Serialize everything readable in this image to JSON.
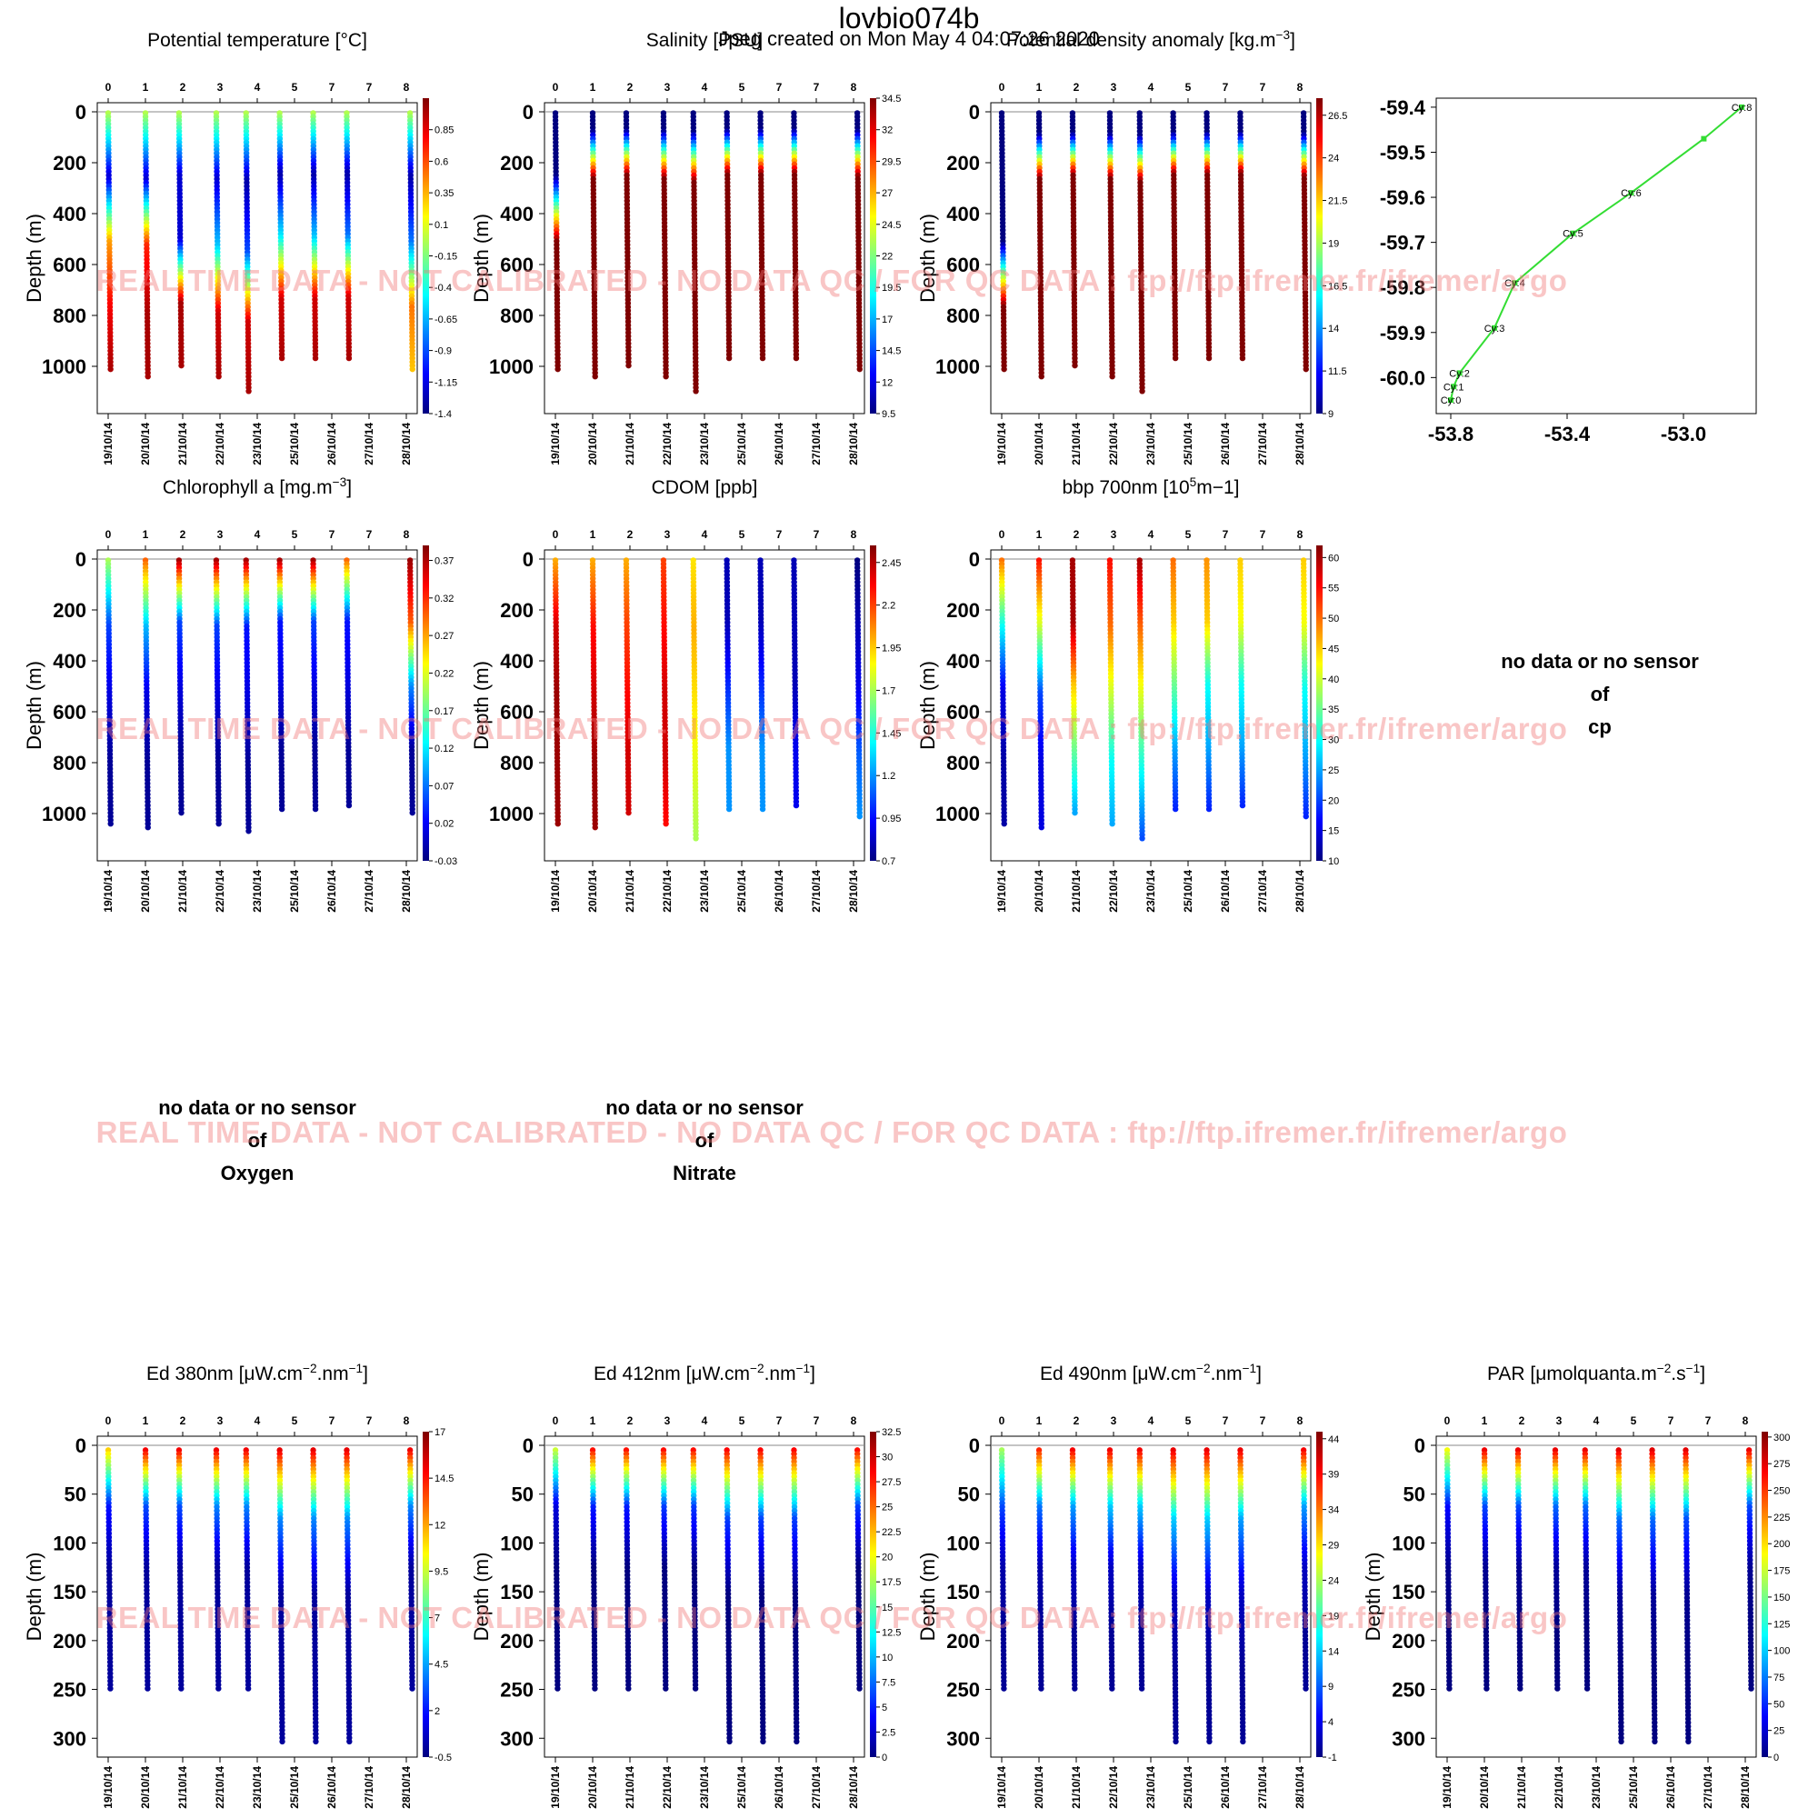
{
  "header": {
    "title": "lovbio074b",
    "subtitle": "Jpeg created on  Mon May  4 04:07:26 2020"
  },
  "watermark": "REAL TIME DATA - NOT CALIBRATED - NO DATA QC   /  FOR QC DATA : ftp://ftp.ifremer.fr/ifremer/argo",
  "common": {
    "ylabel": "Depth (m)",
    "dates": [
      "19/10/14",
      "20/10/14",
      "21/10/14",
      "22/10/14",
      "23/10/14",
      "25/10/14",
      "26/10/14",
      "27/10/14",
      "28/10/14"
    ],
    "date_x": [
      0,
      1,
      2,
      3,
      4,
      5,
      6,
      7,
      8
    ],
    "cycle_ticks": [
      "0",
      "1",
      "2",
      "3",
      "4",
      "5",
      "7",
      "7",
      "8"
    ],
    "cycle_x": [
      0,
      1,
      2,
      3,
      4,
      5,
      6,
      7,
      8
    ],
    "profile_x": [
      0,
      1,
      1.9,
      2.9,
      3.7,
      4.6,
      5.5,
      6.4,
      8.1
    ],
    "colormap": [
      "#00007f",
      "#0000ff",
      "#007fff",
      "#00ffff",
      "#7fff7f",
      "#ffff00",
      "#ff7f00",
      "#ff0000",
      "#7f0000"
    ]
  },
  "no_data_panels": [
    {
      "line1": "no data or no sensor",
      "line2": "of",
      "param": "cp"
    },
    {
      "line1": "no data or no sensor",
      "line2": "of",
      "param": "Oxygen"
    },
    {
      "line1": "no data or no sensor",
      "line2": "of",
      "param": "Nitrate"
    }
  ],
  "chart_data": [
    {
      "type": "scatter",
      "title": "Potential temperature [°C]",
      "ylabel": "Depth (m)",
      "ylim": [
        0,
        1150
      ],
      "yticks": [
        0,
        200,
        400,
        600,
        800,
        1000
      ],
      "colorbar": {
        "range": [
          -1.4,
          1.1
        ],
        "ticks": [
          "-1.4",
          "-1.15",
          "-0.9",
          "-0.65",
          "-0.4",
          "-0.15",
          "0.1",
          "0.35",
          "0.6",
          "0.85"
        ]
      },
      "profile_max_depth": [
        1020,
        1050,
        1000,
        1050,
        1100,
        980,
        980,
        970,
        1020
      ],
      "profiles": [
        [
          0,
          -1.2,
          0.4,
          0.8,
          1.0
        ],
        [
          0,
          -1.2,
          0.7,
          1.0,
          1.0
        ],
        [
          0,
          -1.2,
          -1.2,
          1.0,
          1.0
        ],
        [
          0,
          -1.2,
          -0.6,
          0.9,
          1.0
        ],
        [
          0,
          -1.3,
          -0.9,
          0.9,
          1.0
        ],
        [
          0,
          -1.3,
          -0.5,
          0.9,
          1.0
        ],
        [
          0,
          -1.3,
          -0.6,
          0.9,
          1.0
        ],
        [
          0,
          -1.3,
          -0.8,
          0.9,
          1.0
        ],
        [
          0,
          -1.3,
          -0.8,
          0.5,
          0.3
        ]
      ]
    },
    {
      "type": "scatter",
      "title": "Salinity [PSU]",
      "ylabel": "Depth (m)",
      "ylim": [
        0,
        1150
      ],
      "yticks": [
        0,
        200,
        400,
        600,
        800,
        1000
      ],
      "colorbar": {
        "range": [
          9.5,
          34.5
        ],
        "ticks": [
          "9.5",
          "12",
          "14.5",
          "17",
          "19.5",
          "22",
          "24.5",
          "27",
          "29.5",
          "32",
          "34.5"
        ]
      },
      "profile_max_depth": [
        1020,
        1050,
        1000,
        1050,
        1100,
        980,
        980,
        970,
        1020
      ],
      "profiles": [
        [
          0,
          10,
          34.5,
          34.5,
          34.5
        ],
        [
          0,
          34.5,
          34.5,
          34.5,
          34.5
        ],
        [
          0,
          34.5,
          34.5,
          34.5,
          34.5
        ],
        [
          0,
          34.5,
          34.5,
          34.5,
          34.5
        ],
        [
          0,
          34.5,
          34.5,
          34.5,
          34.5
        ],
        [
          0,
          34.5,
          34.5,
          34.5,
          34.5
        ],
        [
          0,
          34.5,
          34.5,
          34.5,
          34.5
        ],
        [
          0,
          34.5,
          34.5,
          34.5,
          34.5
        ],
        [
          0,
          34.5,
          34.5,
          34.5,
          34.5
        ]
      ]
    },
    {
      "type": "scatter",
      "title": "Potential density anomaly [kg.m−3]",
      "ylabel": "Depth (m)",
      "ylim": [
        0,
        1150
      ],
      "yticks": [
        0,
        200,
        400,
        600,
        800,
        1000
      ],
      "colorbar": {
        "range": [
          9,
          27.5
        ],
        "ticks": [
          "9",
          "11.5",
          "14",
          "16.5",
          "19",
          "21.5",
          "24",
          "26.5"
        ]
      },
      "profile_max_depth": [
        1020,
        1050,
        1000,
        1050,
        1100,
        980,
        980,
        970,
        1020
      ],
      "profiles": [
        [
          0,
          9,
          9,
          27.5,
          27.5
        ],
        [
          0,
          27.5,
          27.5,
          27.5,
          27.5
        ],
        [
          0,
          27.5,
          27.5,
          27.5,
          27.5
        ],
        [
          0,
          27.5,
          27.5,
          27.5,
          27.5
        ],
        [
          0,
          27.5,
          27.5,
          27.5,
          27.5
        ],
        [
          0,
          27.5,
          27.5,
          27.5,
          27.5
        ],
        [
          0,
          27.5,
          27.5,
          27.5,
          27.5
        ],
        [
          0,
          27.5,
          27.5,
          27.5,
          27.5
        ],
        [
          0,
          27.5,
          27.5,
          27.5,
          27.5
        ]
      ]
    },
    {
      "type": "line",
      "title": "",
      "xlim": [
        -53.85,
        -52.75
      ],
      "ylim": [
        -60.08,
        -59.38
      ],
      "xticks": [
        "-53.8",
        "-53.4",
        "-53.0"
      ],
      "xtick_values": [
        -53.8,
        -53.4,
        -53.0
      ],
      "yticks": [
        "-59.4",
        "-59.5",
        "-59.6",
        "-59.7",
        "-59.8",
        "-59.9",
        "-60.0"
      ],
      "ytick_values": [
        -59.4,
        -59.5,
        -59.6,
        -59.7,
        -59.8,
        -59.9,
        -60.0
      ],
      "color": "#33dd33",
      "x": [
        -53.8,
        -53.79,
        -53.77,
        -53.65,
        -53.58,
        -53.38,
        -53.18,
        -52.93,
        -52.8
      ],
      "y": [
        -60.05,
        -60.02,
        -59.99,
        -59.89,
        -59.79,
        -59.68,
        -59.59,
        -59.47,
        -59.4
      ],
      "labels": [
        "Cy:0",
        "Cy:1",
        "Cy:2",
        "Cy:3",
        "Cy:4",
        "Cy:5",
        "Cy:6",
        "",
        "Cy:8"
      ]
    },
    {
      "type": "scatter",
      "title": "Chlorophyll a [mg.m−3]",
      "ylabel": "Depth (m)",
      "ylim": [
        0,
        1150
      ],
      "yticks": [
        0,
        200,
        400,
        600,
        800,
        1000
      ],
      "colorbar": {
        "range": [
          -0.03,
          0.39
        ],
        "ticks": [
          "-0.03",
          "0.02",
          "0.07",
          "0.12",
          "0.17",
          "0.22",
          "0.27",
          "0.32",
          "0.37"
        ]
      },
      "profile_max_depth": [
        1050,
        1060,
        1000,
        1050,
        1070,
        990,
        990,
        980,
        1000
      ],
      "profiles": [
        [
          0.2,
          0.05,
          0.01,
          -0.02,
          -0.02
        ],
        [
          0.3,
          0.1,
          0.01,
          -0.02,
          -0.02
        ],
        [
          0.38,
          0.05,
          0.01,
          -0.02,
          -0.02
        ],
        [
          0.38,
          0.05,
          0.01,
          -0.02,
          -0.02
        ],
        [
          0.38,
          0.03,
          0.01,
          -0.02,
          -0.02
        ],
        [
          0.38,
          0.03,
          0.01,
          -0.02,
          -0.02
        ],
        [
          0.38,
          0.05,
          0.01,
          -0.02,
          -0.02
        ],
        [
          0.3,
          0.03,
          0.01,
          -0.02,
          -0.02
        ],
        [
          0.38,
          0.3,
          0.08,
          -0.02,
          -0.02
        ]
      ]
    },
    {
      "type": "scatter",
      "title": "CDOM  [ppb]",
      "ylabel": "Depth (m)",
      "ylim": [
        0,
        1150
      ],
      "yticks": [
        0,
        200,
        400,
        600,
        800,
        1000
      ],
      "colorbar": {
        "range": [
          0.7,
          2.55
        ],
        "ticks": [
          "0.7",
          "0.95",
          "1.2",
          "1.45",
          "1.7",
          "1.95",
          "2.2",
          "2.45"
        ]
      },
      "profile_max_depth": [
        1050,
        1060,
        1000,
        1050,
        1110,
        990,
        990,
        980,
        1020
      ],
      "profiles": [
        [
          2.0,
          2.4,
          2.5,
          2.5,
          2.5
        ],
        [
          2.0,
          2.3,
          2.4,
          2.5,
          2.5
        ],
        [
          2.0,
          2.2,
          2.3,
          2.4,
          2.4
        ],
        [
          2.2,
          2.3,
          2.4,
          2.4,
          2.3
        ],
        [
          1.9,
          2.0,
          1.9,
          1.8,
          1.7
        ],
        [
          0.8,
          0.8,
          1.0,
          1.2,
          1.2
        ],
        [
          0.8,
          0.8,
          1.0,
          1.2,
          1.2
        ],
        [
          0.8,
          0.8,
          0.8,
          0.9,
          0.9
        ],
        [
          0.7,
          0.8,
          0.9,
          1.1,
          1.2
        ]
      ]
    },
    {
      "type": "scatter",
      "title": "bbp 700nm [105m−1]",
      "ylabel": "Depth (m)",
      "ylim": [
        0,
        1150
      ],
      "yticks": [
        0,
        200,
        400,
        600,
        800,
        1000
      ],
      "colorbar": {
        "range": [
          10,
          62
        ],
        "ticks": [
          "10",
          "15",
          "20",
          "25",
          "30",
          "35",
          "40",
          "45",
          "50",
          "55",
          "60"
        ]
      },
      "profile_max_depth": [
        1050,
        1060,
        1000,
        1050,
        1110,
        990,
        990,
        980,
        1020
      ],
      "profiles": [
        [
          50,
          30,
          15,
          12,
          12
        ],
        [
          55,
          40,
          20,
          15,
          15
        ],
        [
          60,
          60,
          45,
          35,
          25
        ],
        [
          55,
          50,
          40,
          30,
          25
        ],
        [
          60,
          50,
          40,
          30,
          20
        ],
        [
          50,
          45,
          35,
          25,
          18
        ],
        [
          48,
          45,
          30,
          25,
          18
        ],
        [
          45,
          42,
          30,
          25,
          18
        ],
        [
          45,
          42,
          30,
          25,
          18
        ]
      ]
    },
    {
      "type": "scatter",
      "title": "Ed 380nm [μW.cm−2.nm−1]",
      "ylabel": "Depth (m)",
      "ylim": [
        0,
        310
      ],
      "yticks": [
        0,
        50,
        100,
        150,
        200,
        250,
        300
      ],
      "colorbar": {
        "range": [
          -0.5,
          17
        ],
        "ticks": [
          "-0.5",
          "2",
          "4.5",
          "7",
          "9.5",
          "12",
          "14.5",
          "17"
        ]
      },
      "profile_max_depth": [
        250,
        250,
        250,
        250,
        250,
        305,
        305,
        305,
        250
      ],
      "profiles": [
        [
          12,
          2,
          0,
          0,
          0
        ],
        [
          16,
          3,
          0,
          0,
          0
        ],
        [
          16,
          3,
          0,
          0,
          0
        ],
        [
          16,
          4,
          0,
          0,
          0
        ],
        [
          16,
          4,
          0,
          0,
          0
        ],
        [
          16,
          4,
          0,
          0,
          0
        ],
        [
          16,
          4,
          0,
          0,
          0
        ],
        [
          16,
          4,
          0,
          0,
          0
        ],
        [
          16,
          4,
          0,
          0,
          0
        ]
      ]
    },
    {
      "type": "scatter",
      "title": "Ed 412nm [μW.cm−2.nm−1]",
      "ylabel": "Depth (m)",
      "ylim": [
        0,
        310
      ],
      "yticks": [
        0,
        50,
        100,
        150,
        200,
        250,
        300
      ],
      "colorbar": {
        "range": [
          0,
          32.5
        ],
        "ticks": [
          "0",
          "2.5",
          "5",
          "7.5",
          "10",
          "12.5",
          "15",
          "17.5",
          "20",
          "22.5",
          "25",
          "27.5",
          "30",
          "32.5"
        ]
      },
      "profile_max_depth": [
        250,
        250,
        250,
        250,
        250,
        305,
        305,
        305,
        250
      ],
      "profiles": [
        [
          20,
          3,
          0,
          0,
          0
        ],
        [
          30,
          5,
          0,
          0,
          0
        ],
        [
          30,
          5,
          0,
          0,
          0
        ],
        [
          30,
          6,
          0,
          0,
          0
        ],
        [
          30,
          6,
          0,
          0,
          0
        ],
        [
          30,
          6,
          0,
          0,
          0
        ],
        [
          30,
          6,
          0,
          0,
          0
        ],
        [
          30,
          6,
          0,
          0,
          0
        ],
        [
          30,
          6,
          0,
          0,
          0
        ]
      ]
    },
    {
      "type": "scatter",
      "title": "Ed 490nm [μW.cm−2.nm−1]",
      "ylabel": "Depth (m)",
      "ylim": [
        0,
        310
      ],
      "yticks": [
        0,
        50,
        100,
        150,
        200,
        250,
        300
      ],
      "colorbar": {
        "range": [
          -1,
          45
        ],
        "ticks": [
          "-1",
          "4",
          "9",
          "14",
          "19",
          "24",
          "29",
          "34",
          "39",
          "44"
        ]
      },
      "profile_max_depth": [
        250,
        250,
        250,
        250,
        250,
        305,
        305,
        305,
        250
      ],
      "profiles": [
        [
          25,
          8,
          1,
          0,
          0
        ],
        [
          40,
          10,
          1,
          0,
          0
        ],
        [
          42,
          12,
          2,
          0,
          0
        ],
        [
          42,
          14,
          2,
          0,
          0
        ],
        [
          42,
          14,
          2,
          0,
          0
        ],
        [
          42,
          14,
          2,
          0,
          0
        ],
        [
          42,
          14,
          2,
          0,
          0
        ],
        [
          42,
          12,
          2,
          0,
          0
        ],
        [
          42,
          12,
          2,
          0,
          0
        ]
      ]
    },
    {
      "type": "scatter",
      "title": "PAR [μmolquanta.m−2.s−1]",
      "ylabel": "Depth (m)",
      "ylim": [
        0,
        310
      ],
      "yticks": [
        0,
        50,
        100,
        150,
        200,
        250,
        300
      ],
      "colorbar": {
        "range": [
          0,
          305
        ],
        "ticks": [
          "0",
          "25",
          "50",
          "75",
          "100",
          "125",
          "150",
          "175",
          "200",
          "225",
          "250",
          "275",
          "300"
        ]
      },
      "profile_max_depth": [
        250,
        250,
        250,
        250,
        250,
        305,
        305,
        305,
        250
      ],
      "profiles": [
        [
          200,
          40,
          5,
          0,
          0
        ],
        [
          290,
          60,
          6,
          0,
          0
        ],
        [
          290,
          60,
          6,
          0,
          0
        ],
        [
          290,
          70,
          8,
          0,
          0
        ],
        [
          290,
          70,
          8,
          0,
          0
        ],
        [
          290,
          70,
          8,
          0,
          0
        ],
        [
          290,
          70,
          8,
          0,
          0
        ],
        [
          290,
          60,
          6,
          0,
          0
        ],
        [
          290,
          60,
          6,
          0,
          0
        ]
      ]
    }
  ]
}
